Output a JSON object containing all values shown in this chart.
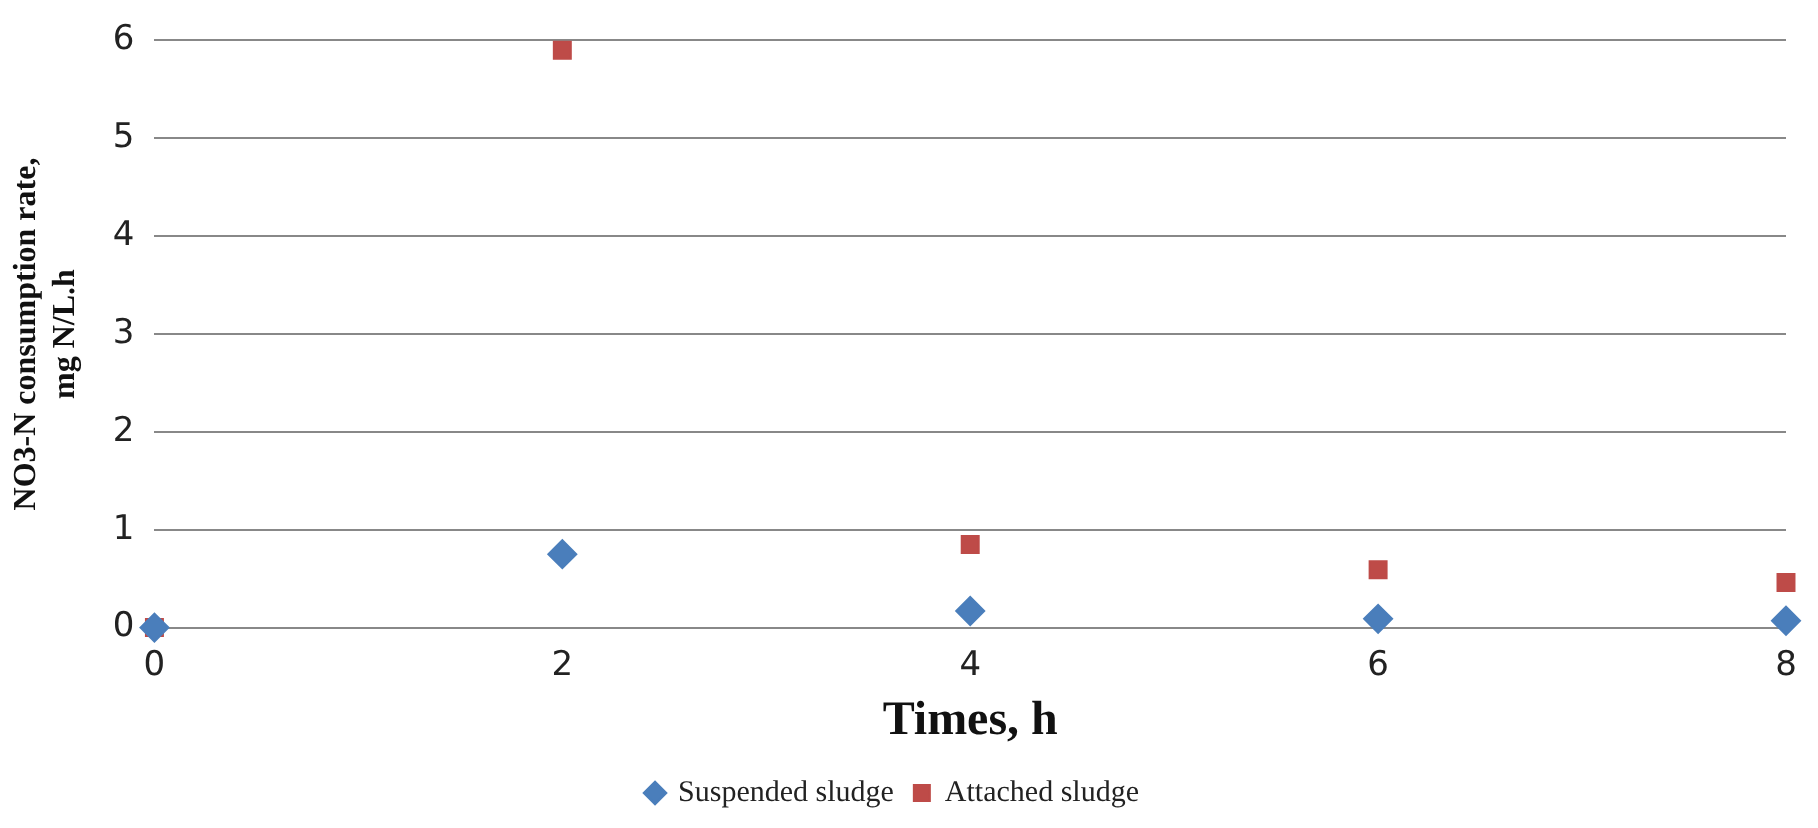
{
  "chart_data": {
    "type": "scatter",
    "xlabel": "Times, h",
    "ylabel": "NO3-N consumption rate, mg N/L.h",
    "xlim": [
      0,
      8
    ],
    "xticks": [
      0,
      2,
      4,
      6,
      8
    ],
    "ylim": [
      0,
      6
    ],
    "yticks": [
      0,
      1,
      2,
      3,
      4,
      5,
      6
    ],
    "grid": "y",
    "legend": "bottom",
    "series": [
      {
        "name": "Suspended sludge",
        "color": "#4a7ebb",
        "marker": "diamond",
        "x": [
          0,
          2,
          4,
          6,
          8
        ],
        "values": [
          0,
          0.75,
          0.17,
          0.09,
          0.07
        ]
      },
      {
        "name": "Attached sludge",
        "color": "#be4b48",
        "marker": "square",
        "x": [
          0,
          2,
          4,
          6,
          8
        ],
        "values": [
          0,
          5.9,
          0.85,
          0.59,
          0.46
        ]
      }
    ]
  }
}
